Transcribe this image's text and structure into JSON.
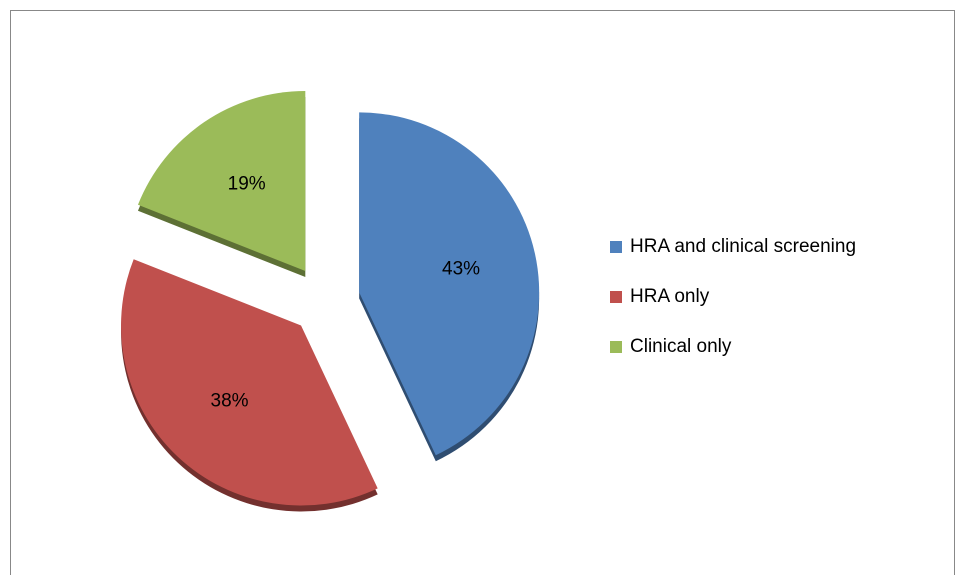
{
  "chart_data": {
    "type": "pie",
    "categories": [
      "HRA and clinical screening",
      "HRA only",
      "Clinical only"
    ],
    "values": [
      43,
      38,
      19
    ],
    "value_labels": [
      "43%",
      "38%",
      "19%"
    ],
    "colors": [
      "#4f81bd",
      "#c0504d",
      "#9bbb59"
    ],
    "legend": "right"
  }
}
